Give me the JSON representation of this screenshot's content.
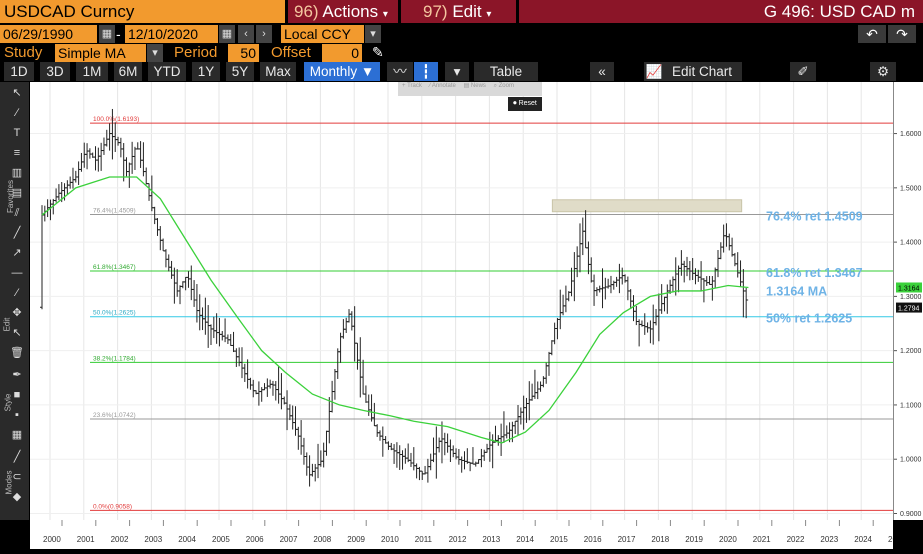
{
  "topbar": {
    "ticker": "USDCAD Curncy",
    "actions_num": "96)",
    "actions_label": "Actions",
    "edit_num": "97)",
    "edit_label": "Edit",
    "title": "G 496: USD CAD m"
  },
  "range": {
    "start": "06/29/1990",
    "sep": "-",
    "end": "12/10/2020",
    "currency": "Local CCY"
  },
  "study": {
    "label": "Study",
    "value": "Simple MA",
    "period_label": "Period",
    "period_value": "50",
    "offset_label": "Offset",
    "offset_value": "0"
  },
  "toolbar": {
    "periods": [
      "1D",
      "3D",
      "1M",
      "6M",
      "YTD",
      "1Y",
      "5Y",
      "Max"
    ],
    "frequency": "Monthly ▼",
    "table": "Table",
    "edit_chart": "Edit Chart"
  },
  "annotate_bar": {
    "items": [
      "Track",
      "Annotate",
      "News",
      "Zoom"
    ],
    "reset": "Reset"
  },
  "left_toolbar": {
    "favorites": "Favorites",
    "edit": "Edit",
    "style": "Style",
    "modes": "Modes"
  },
  "chart_data": {
    "type": "bar",
    "x_ticks": [
      "2000",
      "2001",
      "2002",
      "2003",
      "2004",
      "2005",
      "2006",
      "2007",
      "2008",
      "2009",
      "2010",
      "2011",
      "2012",
      "2013",
      "2014",
      "2015",
      "2016",
      "2017",
      "2018",
      "2019",
      "2020",
      "2021",
      "2022",
      "2023",
      "2024",
      "2025"
    ],
    "y_ticks": [
      "1.6000",
      "1.5000",
      "1.4000",
      "1.3000",
      "1.2000",
      "1.1000",
      "1.0000",
      "0.9000"
    ],
    "ylim": [
      0.888,
      1.695
    ],
    "current_price": "1.2794",
    "ma_value": "1.3164",
    "fib_levels": [
      {
        "label": "100.0%(1.6193)",
        "value": 1.6193,
        "color": "#e23b3b"
      },
      {
        "label": "76.4%(1.4509)",
        "value": 1.4509,
        "color": "#999999"
      },
      {
        "label": "61.8%(1.3467)",
        "value": 1.3467,
        "color": "#33cc33"
      },
      {
        "label": "50.0%(1.2625)",
        "value": 1.2625,
        "color": "#33c9e6"
      },
      {
        "label": "38.2%(1.1784)",
        "value": 1.1784,
        "color": "#33cc33"
      },
      {
        "label": "23.6%(1.0742)",
        "value": 1.0742,
        "color": "#999999"
      },
      {
        "label": "0.0%(0.9058)",
        "value": 0.9058,
        "color": "#e23b3b"
      }
    ],
    "annotations": [
      {
        "text": "76.4% ret 1.4509",
        "value": 1.4509
      },
      {
        "text": "61.8% ret 1.3467",
        "value": 1.3467
      },
      {
        "text": "1.3164 MA",
        "value": 1.3164
      },
      {
        "text": "50% ret 1.2625",
        "value": 1.2625
      }
    ],
    "price_series": [
      [
        2000.0,
        1.45
      ],
      [
        2000.5,
        1.49
      ],
      [
        2001.0,
        1.52
      ],
      [
        2001.3,
        1.57
      ],
      [
        2001.6,
        1.55
      ],
      [
        2002.0,
        1.6
      ],
      [
        2002.3,
        1.58
      ],
      [
        2002.5,
        1.53
      ],
      [
        2002.8,
        1.58
      ],
      [
        2003.0,
        1.53
      ],
      [
        2003.3,
        1.45
      ],
      [
        2003.6,
        1.38
      ],
      [
        2004.0,
        1.31
      ],
      [
        2004.3,
        1.34
      ],
      [
        2004.6,
        1.27
      ],
      [
        2005.0,
        1.24
      ],
      [
        2005.5,
        1.22
      ],
      [
        2005.9,
        1.17
      ],
      [
        2006.3,
        1.12
      ],
      [
        2006.8,
        1.14
      ],
      [
        2007.2,
        1.1
      ],
      [
        2007.6,
        1.04
      ],
      [
        2007.9,
        0.97
      ],
      [
        2008.3,
        1.0
      ],
      [
        2008.8,
        1.22
      ],
      [
        2009.1,
        1.27
      ],
      [
        2009.5,
        1.12
      ],
      [
        2009.9,
        1.05
      ],
      [
        2010.3,
        1.02
      ],
      [
        2010.8,
        1.0
      ],
      [
        2011.3,
        0.97
      ],
      [
        2011.8,
        1.04
      ],
      [
        2012.3,
        1.0
      ],
      [
        2012.8,
        0.99
      ],
      [
        2013.3,
        1.03
      ],
      [
        2013.8,
        1.05
      ],
      [
        2014.3,
        1.1
      ],
      [
        2014.8,
        1.14
      ],
      [
        2015.2,
        1.25
      ],
      [
        2015.6,
        1.31
      ],
      [
        2016.0,
        1.42
      ],
      [
        2016.3,
        1.31
      ],
      [
        2016.8,
        1.32
      ],
      [
        2017.2,
        1.34
      ],
      [
        2017.6,
        1.25
      ],
      [
        2018.0,
        1.24
      ],
      [
        2018.5,
        1.31
      ],
      [
        2018.9,
        1.36
      ],
      [
        2019.3,
        1.34
      ],
      [
        2019.8,
        1.32
      ],
      [
        2020.2,
        1.42
      ],
      [
        2020.5,
        1.36
      ],
      [
        2020.9,
        1.28
      ]
    ],
    "ma_series": [
      [
        2000.0,
        1.45
      ],
      [
        2001.0,
        1.5
      ],
      [
        2002.0,
        1.52
      ],
      [
        2002.8,
        1.52
      ],
      [
        2003.5,
        1.48
      ],
      [
        2004.3,
        1.4
      ],
      [
        2005.0,
        1.33
      ],
      [
        2005.8,
        1.26
      ],
      [
        2006.5,
        1.2
      ],
      [
        2007.2,
        1.16
      ],
      [
        2008.0,
        1.12
      ],
      [
        2008.8,
        1.1
      ],
      [
        2009.5,
        1.09
      ],
      [
        2010.3,
        1.08
      ],
      [
        2011.0,
        1.07
      ],
      [
        2012.0,
        1.06
      ],
      [
        2013.0,
        1.04
      ],
      [
        2013.6,
        1.03
      ],
      [
        2014.3,
        1.05
      ],
      [
        2015.0,
        1.09
      ],
      [
        2015.8,
        1.16
      ],
      [
        2016.5,
        1.23
      ],
      [
        2017.2,
        1.27
      ],
      [
        2018.0,
        1.3
      ],
      [
        2018.8,
        1.31
      ],
      [
        2019.5,
        1.31
      ],
      [
        2020.3,
        1.32
      ],
      [
        2020.9,
        1.3164
      ]
    ],
    "resistance_box": {
      "x_from": 2015.1,
      "x_to": 2020.7,
      "y_from": 1.456,
      "y_to": 1.478
    }
  }
}
